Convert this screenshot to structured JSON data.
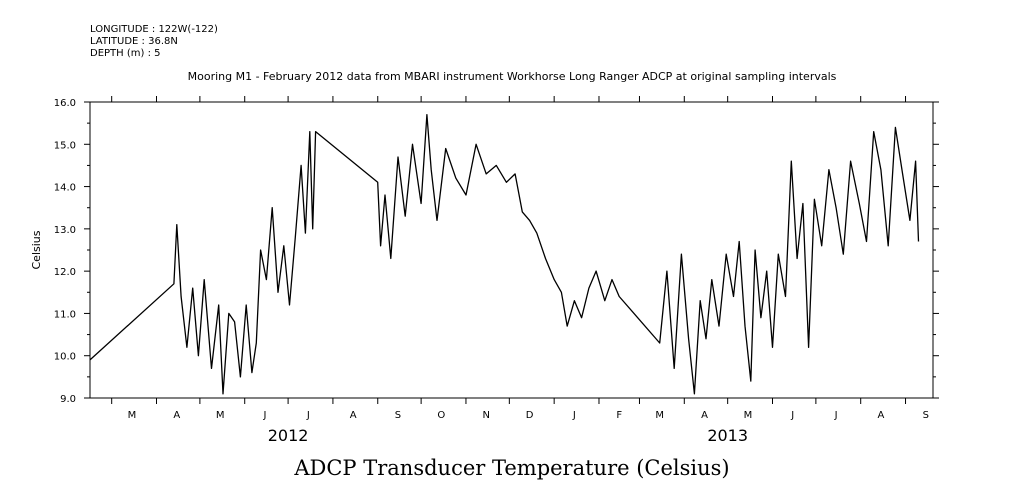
{
  "header": {
    "longitude": "LONGITUDE : 122W(-122)",
    "latitude": "LATITUDE : 36.8N",
    "depth": "DEPTH (m) : 5"
  },
  "chart_data": {
    "type": "line",
    "title": "Mooring M1 - February 2012 data from MBARI instrument Workhorse Long Ranger ADCP at original sampling intervals",
    "ylabel": "Celsius",
    "xlabel": "ADCP Transducer Temperature (Celsius)",
    "ylim": [
      9.0,
      16.0
    ],
    "yticks": [
      9.0,
      10.0,
      11.0,
      12.0,
      13.0,
      14.0,
      15.0,
      16.0
    ],
    "ytick_labels": [
      "9.0",
      "10.0",
      "11.0",
      "12.0",
      "13.0",
      "14.0",
      "15.0",
      "16.0"
    ],
    "xlim": [
      "2012-02-15",
      "2013-09-20"
    ],
    "month_labels": [
      {
        "date": "2012-03-15",
        "label": "M"
      },
      {
        "date": "2012-04-15",
        "label": "A"
      },
      {
        "date": "2012-05-15",
        "label": "M"
      },
      {
        "date": "2012-06-15",
        "label": "J"
      },
      {
        "date": "2012-07-15",
        "label": "J"
      },
      {
        "date": "2012-08-15",
        "label": "A"
      },
      {
        "date": "2012-09-15",
        "label": "S"
      },
      {
        "date": "2012-10-15",
        "label": "O"
      },
      {
        "date": "2012-11-15",
        "label": "N"
      },
      {
        "date": "2012-12-15",
        "label": "D"
      },
      {
        "date": "2013-01-15",
        "label": "J"
      },
      {
        "date": "2013-02-15",
        "label": "F"
      },
      {
        "date": "2013-03-15",
        "label": "M"
      },
      {
        "date": "2013-04-15",
        "label": "A"
      },
      {
        "date": "2013-05-15",
        "label": "M"
      },
      {
        "date": "2013-06-15",
        "label": "J"
      },
      {
        "date": "2013-07-15",
        "label": "J"
      },
      {
        "date": "2013-08-15",
        "label": "A"
      },
      {
        "date": "2013-09-15",
        "label": "S"
      }
    ],
    "year_labels": [
      {
        "date": "2012-07-01",
        "label": "2012"
      },
      {
        "date": "2013-05-01",
        "label": "2013"
      }
    ],
    "series": [
      {
        "color": "#000000",
        "x": [
          "2012-02-15",
          "2012-04-13",
          "2012-04-15",
          "2012-04-18",
          "2012-04-22",
          "2012-04-26",
          "2012-04-30",
          "2012-05-04",
          "2012-05-09",
          "2012-05-14",
          "2012-05-17",
          "2012-05-21",
          "2012-05-25",
          "2012-05-29",
          "2012-06-02",
          "2012-06-06",
          "2012-06-09",
          "2012-06-12",
          "2012-06-16",
          "2012-06-20",
          "2012-06-24",
          "2012-06-28",
          "2012-07-02",
          "2012-07-06",
          "2012-07-10",
          "2012-07-13",
          "2012-07-16",
          "2012-07-18",
          "2012-07-20",
          "2012-09-01",
          "2012-09-03",
          "2012-09-06",
          "2012-09-10",
          "2012-09-15",
          "2012-09-20",
          "2012-09-25",
          "2012-10-01",
          "2012-10-05",
          "2012-10-08",
          "2012-10-12",
          "2012-10-18",
          "2012-10-25",
          "2012-11-01",
          "2012-11-08",
          "2012-11-15",
          "2012-11-22",
          "2012-11-29",
          "2012-12-05",
          "2012-12-10",
          "2012-12-15",
          "2012-12-20",
          "2012-12-26",
          "2013-01-01",
          "2013-01-06",
          "2013-01-10",
          "2013-01-15",
          "2013-01-20",
          "2013-01-25",
          "2013-01-30",
          "2013-02-05",
          "2013-02-10",
          "2013-02-15",
          "2013-03-15",
          "2013-03-20",
          "2013-03-25",
          "2013-03-30",
          "2013-04-04",
          "2013-04-08",
          "2013-04-12",
          "2013-04-16",
          "2013-04-20",
          "2013-04-25",
          "2013-04-30",
          "2013-05-05",
          "2013-05-09",
          "2013-05-13",
          "2013-05-17",
          "2013-05-20",
          "2013-05-24",
          "2013-05-28",
          "2013-06-01",
          "2013-06-05",
          "2013-06-10",
          "2013-06-14",
          "2013-06-18",
          "2013-06-22",
          "2013-06-26",
          "2013-06-30",
          "2013-07-05",
          "2013-07-10",
          "2013-07-15",
          "2013-07-20",
          "2013-07-25",
          "2013-07-31",
          "2013-08-05",
          "2013-08-10",
          "2013-08-15",
          "2013-08-20",
          "2013-08-25",
          "2013-08-30",
          "2013-09-04",
          "2013-09-08",
          "2013-09-10"
        ],
        "y": [
          9.9,
          11.7,
          13.1,
          11.4,
          10.2,
          11.6,
          10.0,
          11.8,
          9.7,
          11.2,
          9.1,
          11.0,
          10.8,
          9.5,
          11.2,
          9.6,
          10.3,
          12.5,
          11.8,
          13.5,
          11.5,
          12.6,
          11.2,
          12.8,
          14.5,
          12.9,
          15.3,
          13.0,
          15.3,
          14.1,
          12.6,
          13.8,
          12.3,
          14.7,
          13.3,
          15.0,
          13.6,
          15.7,
          14.4,
          13.2,
          14.9,
          14.2,
          13.8,
          15.0,
          14.3,
          14.5,
          14.1,
          14.3,
          13.4,
          13.2,
          12.9,
          12.3,
          11.8,
          11.5,
          10.7,
          11.3,
          10.9,
          11.6,
          12.0,
          11.3,
          11.8,
          11.4,
          10.3,
          12.0,
          9.7,
          12.4,
          10.4,
          9.1,
          11.3,
          10.4,
          11.8,
          10.7,
          12.4,
          11.4,
          12.7,
          10.7,
          9.4,
          12.5,
          10.9,
          12.0,
          10.2,
          12.4,
          11.4,
          14.6,
          12.3,
          13.6,
          10.2,
          13.7,
          12.6,
          14.4,
          13.5,
          12.4,
          14.6,
          13.6,
          12.7,
          15.3,
          14.4,
          12.6,
          15.4,
          14.3,
          13.2,
          14.6,
          12.7
        ]
      }
    ],
    "grid": false
  }
}
